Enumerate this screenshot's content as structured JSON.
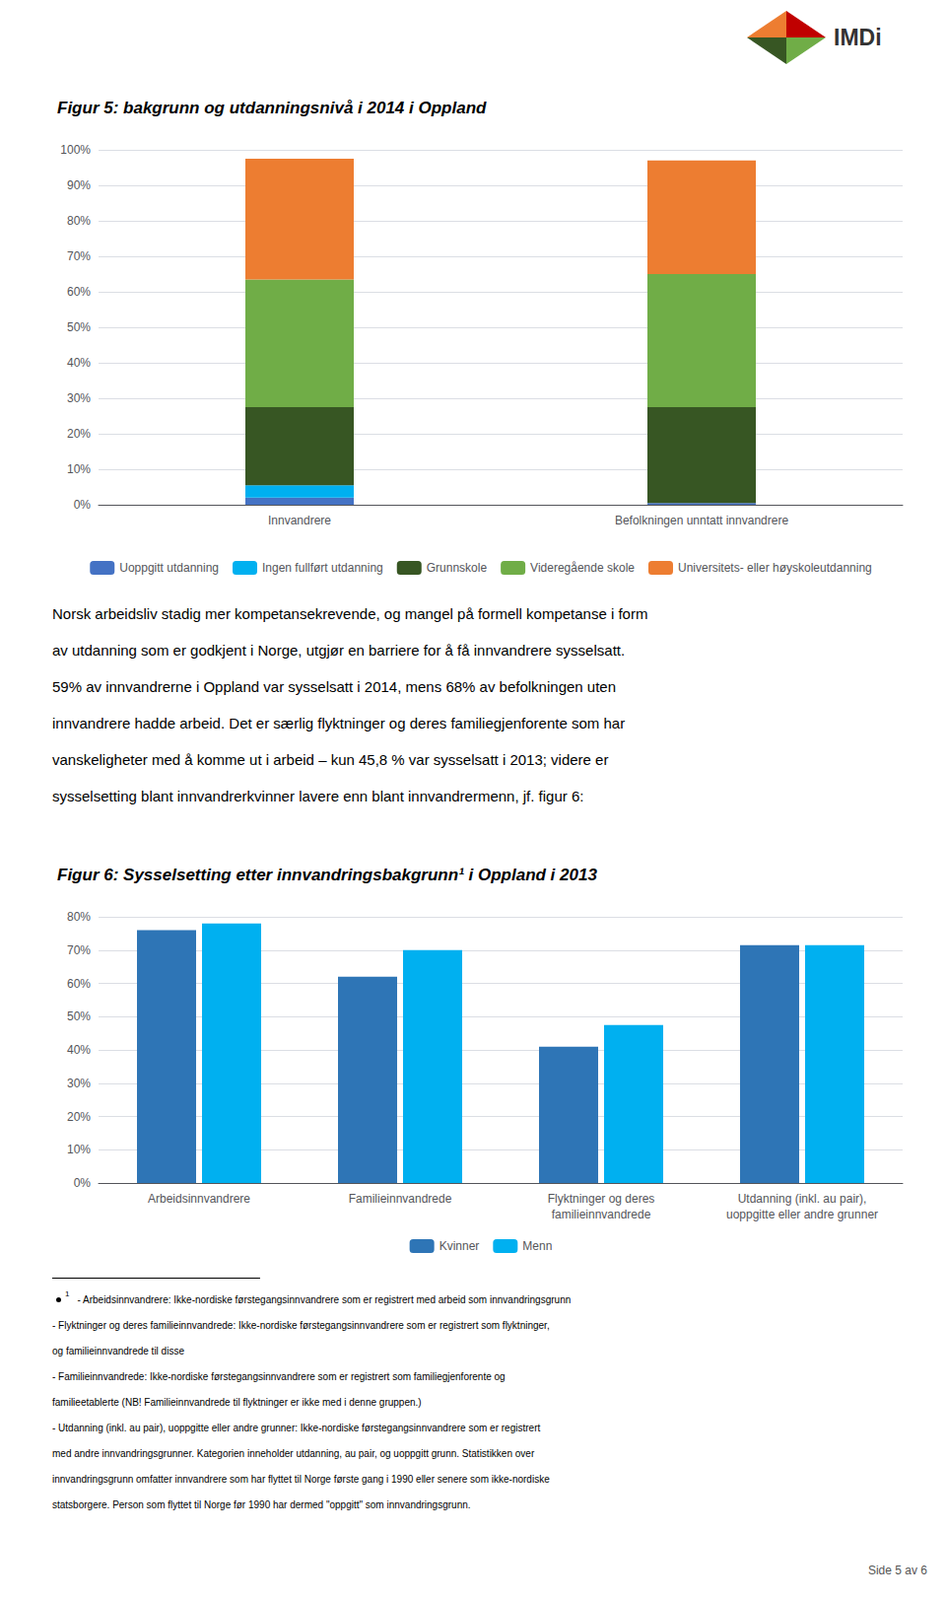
{
  "chart_data": [
    {
      "type": "bar",
      "title": "Figur 5: bakgrunn og utdanningsnivå i 2014 i Oppland",
      "categories": [
        "Innvandrere",
        "Befolkningen unntatt innvandrere"
      ],
      "series": [
        {
          "name": "Uoppgitt utdanning",
          "color": "#4472C4",
          "values": [
            2.0,
            0.5
          ]
        },
        {
          "name": "Ingen fullført utdanning",
          "color": "#00B0F0",
          "values": [
            3.5,
            0.0
          ]
        },
        {
          "name": "Grunnskole",
          "color": "#375623",
          "values": [
            22.0,
            27.0
          ]
        },
        {
          "name": "Videregående skole",
          "color": "#70AD47",
          "values": [
            36.0,
            37.5
          ]
        },
        {
          "name": "Universitets- eller høyskoleutdanning",
          "color": "#ED7D31",
          "values": [
            34.0,
            32.0
          ]
        }
      ],
      "stacked": true,
      "ylim": [
        0,
        100
      ],
      "yticks": [
        {
          "value": 0,
          "label": "0%"
        },
        {
          "value": 10,
          "label": "10%"
        },
        {
          "value": 20,
          "label": "20%"
        },
        {
          "value": 30,
          "label": "30%"
        },
        {
          "value": 40,
          "label": "40%"
        },
        {
          "value": 50,
          "label": "50%"
        },
        {
          "value": 60,
          "label": "60%"
        },
        {
          "value": 70,
          "label": "70%"
        },
        {
          "value": 80,
          "label": "80%"
        },
        {
          "value": 90,
          "label": "90%"
        },
        {
          "value": 100,
          "label": "100%"
        }
      ],
      "grid": true,
      "legend": "bottom"
    },
    {
      "type": "bar",
      "title": "Figur 6: Sysselsetting etter innvandringsbakgrunn¹ i Oppland i 2013",
      "categories": [
        "Arbeidsinnvandrere",
        "Familieinnvandrede",
        "Flyktninger og deres\nfamilieinnvandrede",
        "Utdanning (inkl. au pair),\nuoppgitte eller andre grunner"
      ],
      "series": [
        {
          "name": "Kvinner",
          "color": "#2E75B6",
          "values": [
            76.0,
            62.0,
            41.0,
            71.5
          ]
        },
        {
          "name": "Menn",
          "color": "#00B0F0",
          "values": [
            78.0,
            70.0,
            47.5,
            71.5
          ]
        }
      ],
      "ylim": [
        0,
        80
      ],
      "yticks": [
        {
          "value": 0,
          "label": "0%"
        },
        {
          "value": 10,
          "label": "10%"
        },
        {
          "value": 20,
          "label": "20%"
        },
        {
          "value": 30,
          "label": "30%"
        },
        {
          "value": 40,
          "label": "40%"
        },
        {
          "value": 50,
          "label": "50%"
        },
        {
          "value": 60,
          "label": "60%"
        },
        {
          "value": 70,
          "label": "70%"
        },
        {
          "value": 80,
          "label": "80%"
        }
      ],
      "grid": true,
      "legend": "bottom"
    }
  ],
  "logo": {
    "text": "IMDi",
    "colors": [
      "#ED7D31",
      "#C00000",
      "#375623",
      "#70AD47"
    ]
  },
  "body_text": [
    "Norsk arbeidsliv stadig mer kompetansekrevende, og mangel på formell kompetanse i form",
    "av utdanning som er godkjent i Norge, utgjør en barriere for å få innvandrere sysselsatt.",
    "59% av innvandrerne i Oppland var sysselsatt i 2014, mens 68% av befolkningen uten",
    "innvandrere hadde arbeid. Det er særlig flyktninger og deres familiegjenforente som har",
    "vanskeligheter med å komme ut i arbeid – kun 45,8 % var sysselsatt i 2013; videre er",
    "sysselsetting blant innvandrerkvinner lavere enn blant innvandrermenn, jf. figur 6:"
  ],
  "footnote_marker": "1",
  "footnotes": [
    "- Arbeidsinnvandrere: Ikke-nordiske førstegangsinnvandrere som er registrert med arbeid som innvandringsgrunn",
    "- Flyktninger og deres familieinnvandrede: Ikke-nordiske førstegangsinnvandrere som er registrert som flyktninger,",
    "og familieinnvandrede til disse",
    "- Familieinnvandrede: Ikke-nordiske førstegangsinnvandrere som er registrert som familiegjenforente og",
    "familieetablerte (NB! Familieinnvandrede til flyktninger er ikke med i denne gruppen.)",
    "- Utdanning (inkl. au pair), uoppgitte eller andre grunner: Ikke-nordiske førstegangsinnvandrere som er registrert",
    "med andre innvandringsgrunner. Kategorien inneholder utdanning, au pair, og uoppgitt grunn. Statistikken over",
    "innvandringsgrunn omfatter innvandrere som har flyttet til Norge første gang i 1990 eller senere som ikke-nordiske",
    "statsborgere. Person som flyttet til Norge før 1990 har dermed \"oppgitt\" som innvandringsgrunn."
  ],
  "page_text": "Side 5 av 6"
}
